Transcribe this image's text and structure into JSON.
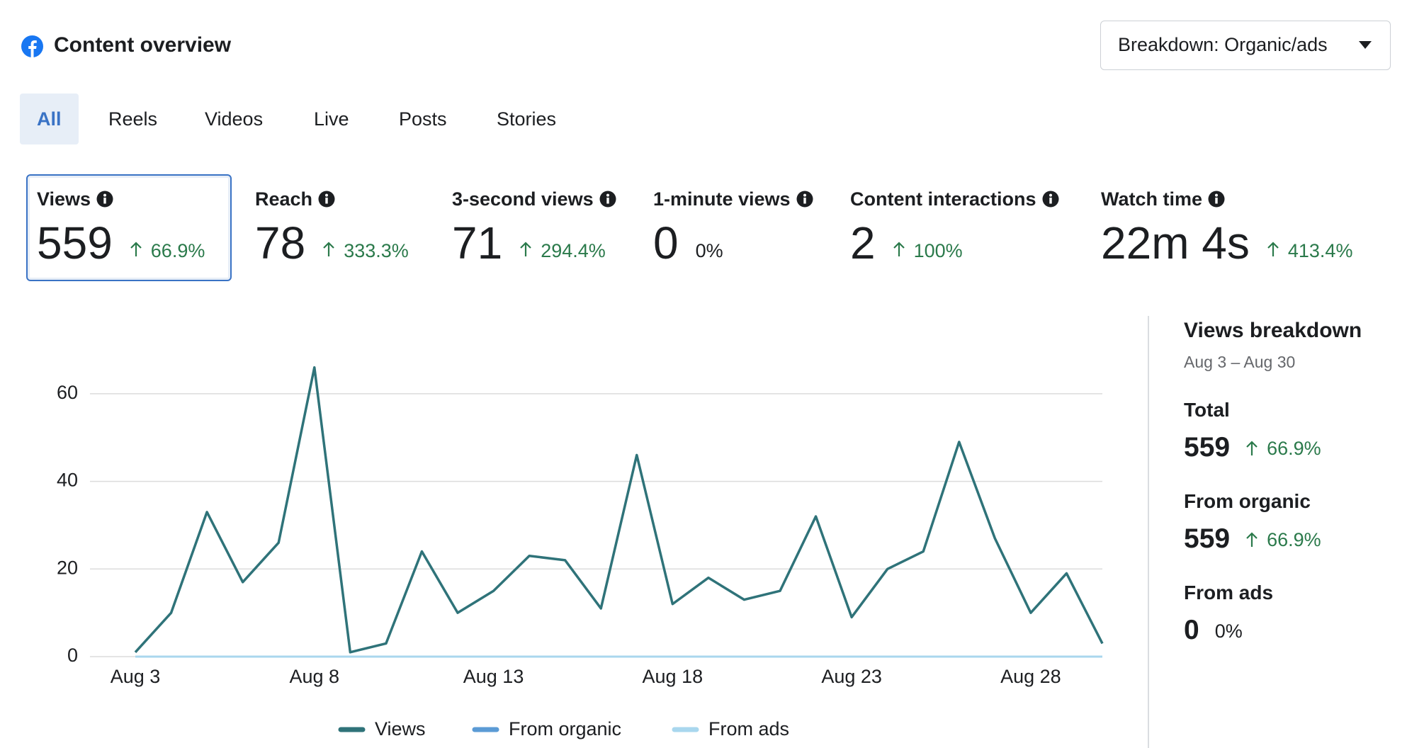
{
  "header": {
    "title": "Content overview",
    "dropdown": "Breakdown: Organic/ads"
  },
  "tabs": {
    "items": [
      "All",
      "Reels",
      "Videos",
      "Live",
      "Posts",
      "Stories"
    ],
    "selected": 0
  },
  "metrics": {
    "selected": 0,
    "items": [
      {
        "label": "Views",
        "value": "559",
        "change": "66.9%",
        "direction": "up"
      },
      {
        "label": "Reach",
        "value": "78",
        "change": "333.3%",
        "direction": "up"
      },
      {
        "label": "3-second views",
        "value": "71",
        "change": "294.4%",
        "direction": "up"
      },
      {
        "label": "1-minute views",
        "value": "0",
        "change": "0%",
        "direction": null
      },
      {
        "label": "Content interactions",
        "value": "2",
        "change": "100%",
        "direction": "up"
      },
      {
        "label": "Watch time",
        "value": "22m 4s",
        "change": "413.4%",
        "direction": "up"
      }
    ]
  },
  "chart_data": {
    "type": "line",
    "categories": [
      "Aug 3",
      null,
      null,
      null,
      null,
      "Aug 8",
      null,
      null,
      null,
      null,
      "Aug 13",
      null,
      null,
      null,
      null,
      "Aug 18",
      null,
      null,
      null,
      null,
      "Aug 23",
      null,
      null,
      null,
      null,
      "Aug 28",
      null,
      null
    ],
    "series": [
      {
        "name": "Views",
        "color": "#2f7379",
        "values": [
          1,
          10,
          33,
          17,
          26,
          66,
          1,
          3,
          24,
          10,
          15,
          23,
          22,
          11,
          46,
          12,
          18,
          13,
          15,
          32,
          9,
          20,
          24,
          49,
          27,
          10,
          19,
          3
        ]
      },
      {
        "name": "From organic",
        "color": "#5b9bd5",
        "values": [
          1,
          10,
          33,
          17,
          26,
          66,
          1,
          3,
          24,
          10,
          15,
          23,
          22,
          11,
          46,
          12,
          18,
          13,
          15,
          32,
          9,
          20,
          24,
          49,
          27,
          10,
          19,
          3
        ]
      },
      {
        "name": "From ads",
        "color": "#a9d7ee",
        "values": [
          0,
          0,
          0,
          0,
          0,
          0,
          0,
          0,
          0,
          0,
          0,
          0,
          0,
          0,
          0,
          0,
          0,
          0,
          0,
          0,
          0,
          0,
          0,
          0,
          0,
          0,
          0,
          0
        ]
      }
    ],
    "ylim": [
      0,
      70
    ],
    "yticks": [
      0,
      20,
      40,
      60
    ],
    "grid": true,
    "legend": "bottom"
  },
  "breakdown": {
    "title": "Views breakdown",
    "dates": "Aug 3 – Aug 30",
    "items": [
      {
        "label": "Total",
        "value": "559",
        "change": "66.9%",
        "direction": "up"
      },
      {
        "label": "From organic",
        "value": "559",
        "change": "66.9%",
        "direction": "up"
      },
      {
        "label": "From ads",
        "value": "0",
        "change": "0%",
        "direction": null
      }
    ]
  }
}
